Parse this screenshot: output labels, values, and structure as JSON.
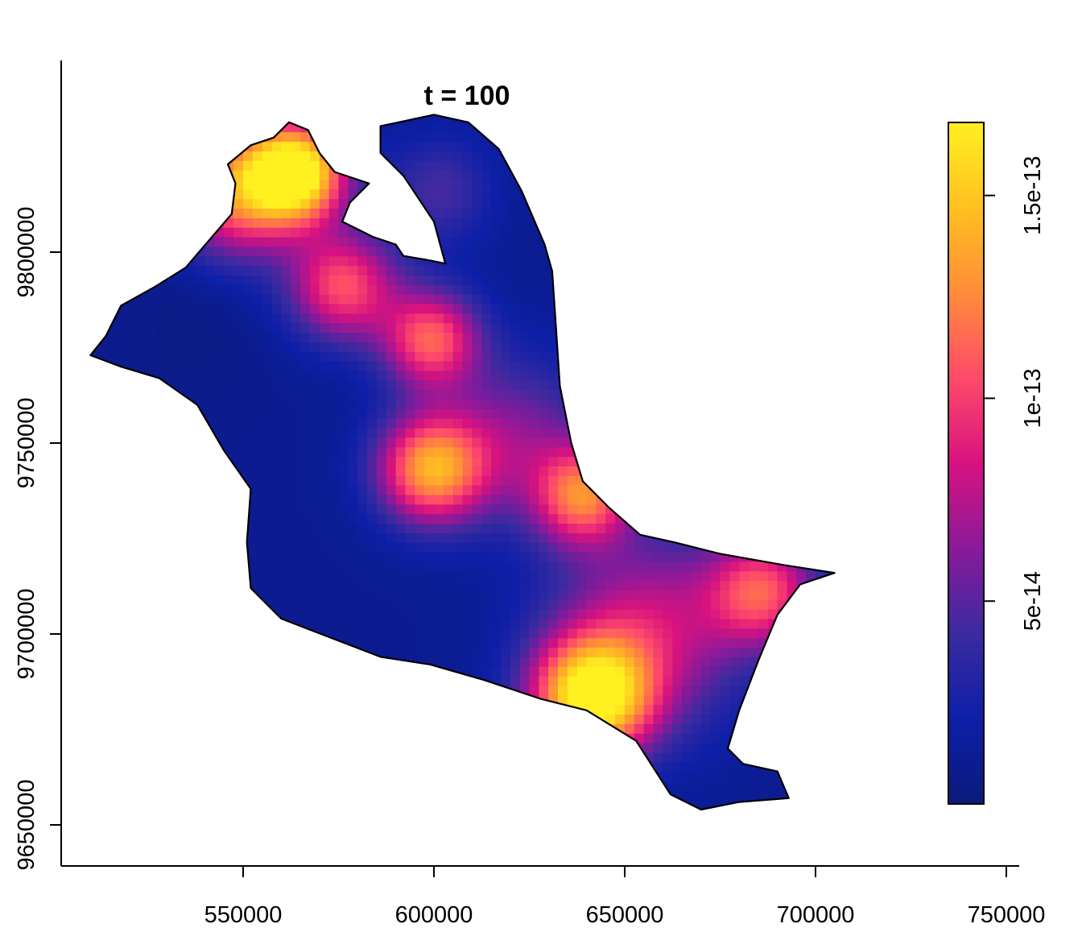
{
  "chart_data": {
    "type": "heatmap",
    "title": "t = 100",
    "xlabel": "",
    "ylabel": "",
    "xlim": [
      505000,
      755000
    ],
    "ylim": [
      9640000,
      9850000
    ],
    "x_ticks": [
      {
        "value": 550000,
        "label": "550000"
      },
      {
        "value": 600000,
        "label": "600000"
      },
      {
        "value": 650000,
        "label": "650000"
      },
      {
        "value": 700000,
        "label": "700000"
      },
      {
        "value": 750000,
        "label": "750000"
      }
    ],
    "y_ticks": [
      {
        "value": 9650000,
        "label": "9650000"
      },
      {
        "value": 9700000,
        "label": "9700000"
      },
      {
        "value": 9750000,
        "label": "9750000"
      },
      {
        "value": 9800000,
        "label": "9800000"
      }
    ],
    "color_scale": {
      "name": "plasma-like",
      "range": [
        0,
        1.68e-13
      ],
      "stops": [
        "#0b1a7a",
        "#0d1fa8",
        "#3a2aa0",
        "#8a1a9a",
        "#d8127f",
        "#ff4a6a",
        "#ff8c3a",
        "#ffc020",
        "#fff020"
      ],
      "ticks": [
        {
          "value": 5e-14,
          "label": "5e-14"
        },
        {
          "value": 1e-13,
          "label": "1e-13"
        },
        {
          "value": 1.5e-13,
          "label": "1.5e-13"
        }
      ],
      "legend_position": "right"
    },
    "region_outline": [
      [
        514000,
        9778000
      ],
      [
        518000,
        9786000
      ],
      [
        527000,
        9791000
      ],
      [
        535000,
        9796000
      ],
      [
        541000,
        9803000
      ],
      [
        547000,
        9810000
      ],
      [
        548000,
        9818000
      ],
      [
        546000,
        9823000
      ],
      [
        552000,
        9828000
      ],
      [
        558000,
        9830000
      ],
      [
        562000,
        9834000
      ],
      [
        567000,
        9832000
      ],
      [
        570000,
        9826000
      ],
      [
        574000,
        9821000
      ],
      [
        583000,
        9818000
      ],
      [
        578000,
        9813000
      ],
      [
        576000,
        9808000
      ],
      [
        584000,
        9804000
      ],
      [
        590000,
        9802000
      ],
      [
        592000,
        9799000
      ],
      [
        598000,
        9798000
      ],
      [
        603000,
        9797000
      ],
      [
        600000,
        9808000
      ],
      [
        592000,
        9820000
      ],
      [
        586000,
        9826000
      ],
      [
        586000,
        9833000
      ],
      [
        600000,
        9836000
      ],
      [
        609000,
        9834000
      ],
      [
        617000,
        9827000
      ],
      [
        623000,
        9816000
      ],
      [
        626000,
        9809000
      ],
      [
        629000,
        9802000
      ],
      [
        631000,
        9795000
      ],
      [
        632000,
        9780000
      ],
      [
        633000,
        9765000
      ],
      [
        636000,
        9750000
      ],
      [
        639000,
        9740000
      ],
      [
        646000,
        9733000
      ],
      [
        654000,
        9726000
      ],
      [
        663000,
        9724000
      ],
      [
        675000,
        9721000
      ],
      [
        692000,
        9718000
      ],
      [
        705000,
        9716000
      ],
      [
        696000,
        9713000
      ],
      [
        690000,
        9705000
      ],
      [
        685000,
        9693000
      ],
      [
        680000,
        9680000
      ],
      [
        677000,
        9670000
      ],
      [
        681000,
        9666000
      ],
      [
        690000,
        9664000
      ],
      [
        693000,
        9657000
      ],
      [
        680000,
        9656000
      ],
      [
        670000,
        9654000
      ],
      [
        662000,
        9658000
      ],
      [
        653000,
        9672000
      ],
      [
        640000,
        9680000
      ],
      [
        628000,
        9683000
      ],
      [
        613000,
        9688000
      ],
      [
        599000,
        9692000
      ],
      [
        586000,
        9694000
      ],
      [
        573000,
        9699000
      ],
      [
        560000,
        9704000
      ],
      [
        552000,
        9712000
      ],
      [
        551000,
        9724000
      ],
      [
        552000,
        9738000
      ],
      [
        545000,
        9748000
      ],
      [
        538000,
        9760000
      ],
      [
        528000,
        9767000
      ],
      [
        518000,
        9770000
      ],
      [
        510000,
        9773000
      ]
    ],
    "hotspots": [
      {
        "x": 563000,
        "y": 9820000,
        "value": 1.65e-13,
        "sigma": 9000
      },
      {
        "x": 548000,
        "y": 9815000,
        "value": 1.2e-13,
        "sigma": 12000
      },
      {
        "x": 575000,
        "y": 9790000,
        "value": 1.05e-13,
        "sigma": 10000
      },
      {
        "x": 598000,
        "y": 9776000,
        "value": 1.08e-13,
        "sigma": 9000
      },
      {
        "x": 598000,
        "y": 9742000,
        "value": 1.3e-13,
        "sigma": 10000
      },
      {
        "x": 638000,
        "y": 9735000,
        "value": 1.1e-13,
        "sigma": 9000
      },
      {
        "x": 640000,
        "y": 9682000,
        "value": 1.68e-13,
        "sigma": 11000
      },
      {
        "x": 685000,
        "y": 9710000,
        "value": 1e-13,
        "sigma": 10000
      },
      {
        "x": 600000,
        "y": 9815000,
        "value": 4.5e-14,
        "sigma": 10000
      },
      {
        "x": 655000,
        "y": 9700000,
        "value": 8e-14,
        "sigma": 18000
      },
      {
        "x": 620000,
        "y": 9750000,
        "value": 6e-14,
        "sigma": 15000
      },
      {
        "x": 535000,
        "y": 9780000,
        "value": 5e-15,
        "sigma": 12000
      }
    ]
  }
}
